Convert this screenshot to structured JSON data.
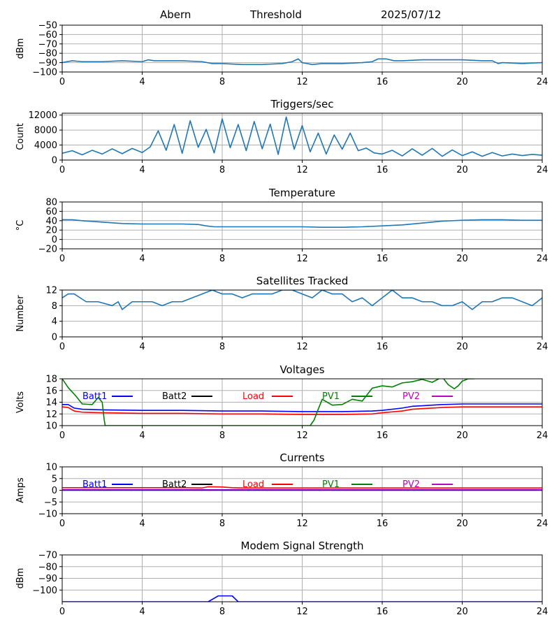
{
  "header": {
    "station": "Abern",
    "mode": "Threshold",
    "date": "2025/07/12"
  },
  "colors": {
    "default_line": "#1f77b4",
    "grid": "#b0b0b0",
    "batt1": "#0000ff",
    "batt2": "#000000",
    "load": "#ff0000",
    "pv1": "#008000",
    "pv2": "#bf00bf"
  },
  "chart_data": [
    {
      "id": "threshold",
      "type": "line",
      "title": "",
      "xlabel": "",
      "ylabel": "dBm",
      "xlim": [
        0,
        24
      ],
      "xticks": [
        0,
        4,
        8,
        12,
        16,
        20,
        24
      ],
      "ylim": [
        -100,
        -50
      ],
      "yticks": [
        -100,
        -90,
        -80,
        -70,
        -60,
        -50
      ],
      "grid": true,
      "series": [
        {
          "color": "#1f77b4",
          "x": [
            0,
            0.5,
            1,
            2,
            3,
            4,
            4.3,
            4.6,
            5,
            6,
            7,
            7.5,
            8,
            9,
            10,
            11,
            11.5,
            11.8,
            12,
            12.5,
            13,
            14,
            15,
            15.5,
            15.8,
            16.2,
            16.6,
            17,
            18,
            19,
            20,
            21,
            21.5,
            21.8,
            22,
            23,
            24
          ],
          "y": [
            -90,
            -88,
            -89,
            -89,
            -88,
            -89,
            -87,
            -88,
            -88,
            -88,
            -89,
            -91,
            -91,
            -92,
            -92,
            -91,
            -89,
            -86,
            -90,
            -92,
            -91,
            -91,
            -90,
            -89,
            -86,
            -86,
            -88,
            -88,
            -87,
            -87,
            -87,
            -88,
            -88,
            -91,
            -90,
            -91,
            -90
          ]
        }
      ]
    },
    {
      "id": "triggers",
      "type": "line",
      "title": "Triggers/sec",
      "xlabel": "",
      "ylabel": "Count",
      "xlim": [
        0,
        24
      ],
      "xticks": [
        0,
        4,
        8,
        12,
        16,
        20,
        24
      ],
      "ylim": [
        0,
        12500
      ],
      "yticks": [
        0,
        4000,
        8000,
        12000
      ],
      "grid": true,
      "series": [
        {
          "color": "#1f77b4",
          "x": [
            0,
            0.5,
            1,
            1.5,
            2,
            2.5,
            3,
            3.5,
            4,
            4.4,
            4.8,
            5.2,
            5.6,
            6,
            6.4,
            6.8,
            7.2,
            7.6,
            8,
            8.4,
            8.8,
            9.2,
            9.6,
            10,
            10.4,
            10.8,
            11.2,
            11.6,
            12,
            12.4,
            12.8,
            13.2,
            13.6,
            14,
            14.4,
            14.8,
            15.2,
            15.6,
            16,
            16.5,
            17,
            17.5,
            18,
            18.5,
            19,
            19.5,
            20,
            20.5,
            21,
            21.5,
            22,
            22.5,
            23,
            23.5,
            24
          ],
          "y": [
            1800,
            2500,
            1400,
            2600,
            1600,
            3000,
            1700,
            3100,
            2000,
            3500,
            7800,
            2600,
            9500,
            1800,
            10500,
            3400,
            8200,
            1900,
            11000,
            3300,
            9500,
            2500,
            10300,
            3000,
            9600,
            1500,
            11500,
            2900,
            9200,
            2200,
            7200,
            1600,
            6700,
            2900,
            7200,
            2500,
            3200,
            1900,
            1600,
            2600,
            1100,
            3000,
            1300,
            3100,
            1000,
            2700,
            1200,
            2200,
            1000,
            2000,
            1100,
            1600,
            1200,
            1500,
            1300
          ]
        }
      ]
    },
    {
      "id": "temperature",
      "type": "line",
      "title": "Temperature",
      "xlabel": "",
      "ylabel": "°C",
      "xlim": [
        0,
        24
      ],
      "xticks": [
        0,
        4,
        8,
        12,
        16,
        20,
        24
      ],
      "ylim": [
        -20,
        80
      ],
      "yticks": [
        -20,
        0,
        20,
        40,
        60,
        80
      ],
      "grid": true,
      "series": [
        {
          "color": "#1f77b4",
          "x": [
            0,
            0.5,
            1,
            2,
            3,
            4,
            5,
            6,
            6.8,
            7.2,
            7.6,
            8,
            9,
            10,
            11,
            12,
            13,
            14,
            15,
            16,
            17,
            18,
            19,
            20,
            21,
            22,
            23,
            24
          ],
          "y": [
            42,
            42,
            40,
            37,
            34,
            33,
            33,
            33,
            32,
            29,
            27,
            27,
            27,
            27,
            27,
            27,
            26,
            26,
            27,
            29,
            31,
            35,
            39,
            41,
            42,
            42,
            41,
            41
          ]
        }
      ]
    },
    {
      "id": "satellites",
      "type": "line",
      "title": "Satellites Tracked",
      "xlabel": "",
      "ylabel": "Number",
      "xlim": [
        0,
        24
      ],
      "xticks": [
        0,
        4,
        8,
        12,
        16,
        20,
        24
      ],
      "ylim": [
        0,
        12
      ],
      "yticks": [
        0,
        4,
        8,
        12
      ],
      "grid": true,
      "series": [
        {
          "color": "#1f77b4",
          "x": [
            0,
            0.3,
            0.6,
            1.2,
            1.8,
            2.5,
            2.8,
            3.0,
            3.5,
            4.0,
            4.5,
            5.0,
            5.5,
            6.0,
            6.5,
            7.0,
            7.5,
            8.0,
            8.5,
            9.0,
            9.5,
            10.0,
            10.5,
            11.0,
            11.5,
            12.0,
            12.5,
            13.0,
            13.5,
            14.0,
            14.5,
            15.0,
            15.5,
            16.0,
            16.5,
            17.0,
            17.5,
            18.0,
            18.5,
            19.0,
            19.5,
            20.0,
            20.5,
            21.0,
            21.5,
            22.0,
            22.5,
            23.0,
            23.5,
            24
          ],
          "y": [
            10,
            11,
            11,
            9,
            9,
            8,
            9,
            7,
            9,
            9,
            9,
            8,
            9,
            9,
            10,
            11,
            12,
            11,
            11,
            10,
            11,
            11,
            11,
            12,
            12,
            11,
            10,
            12,
            11,
            11,
            9,
            10,
            8,
            10,
            12,
            10,
            10,
            9,
            9,
            8,
            8,
            9,
            7,
            9,
            9,
            10,
            10,
            9,
            8,
            10
          ]
        }
      ]
    },
    {
      "id": "voltages",
      "type": "line",
      "title": "Voltages",
      "xlabel": "",
      "ylabel": "Volts",
      "xlim": [
        0,
        24
      ],
      "xticks": [
        0,
        4,
        8,
        12,
        16,
        20,
        24
      ],
      "ylim": [
        10,
        18
      ],
      "yticks": [
        10,
        12,
        14,
        16,
        18
      ],
      "grid": true,
      "series": [
        {
          "name": "Batt1",
          "color": "#0000ff",
          "x": [
            0,
            0.3,
            0.6,
            1,
            2,
            4,
            6,
            8,
            10,
            12,
            14,
            15.5,
            16,
            17,
            17.5,
            18,
            19,
            20,
            22,
            24
          ],
          "y": [
            13.6,
            13.6,
            13.0,
            12.8,
            12.7,
            12.6,
            12.6,
            12.5,
            12.5,
            12.4,
            12.4,
            12.5,
            12.6,
            13.0,
            13.3,
            13.4,
            13.6,
            13.7,
            13.7,
            13.7
          ]
        },
        {
          "name": "Load",
          "color": "#ff0000",
          "x": [
            0,
            0.3,
            0.6,
            1,
            2,
            4,
            6,
            8,
            10,
            12,
            14,
            15.5,
            16,
            17,
            17.5,
            18,
            19,
            20,
            22,
            24
          ],
          "y": [
            13.2,
            13.1,
            12.5,
            12.3,
            12.2,
            12.1,
            12.1,
            12.0,
            12.0,
            11.9,
            11.9,
            12.0,
            12.2,
            12.5,
            12.8,
            12.9,
            13.1,
            13.2,
            13.2,
            13.2
          ]
        },
        {
          "name": "PV1",
          "color": "#008000",
          "x": [
            0,
            0.3,
            0.7,
            1.0,
            1.5,
            1.8,
            2.0,
            2.1,
            2.15,
            12.4,
            12.6,
            12.8,
            13.0,
            13.5,
            14.0,
            14.5,
            15.0,
            15.5,
            16.0,
            16.5,
            17.0,
            17.5,
            18.0,
            18.5,
            19.0,
            19.3,
            19.6,
            19.8,
            20.0,
            20.3,
            20.6
          ],
          "y": [
            18,
            16.5,
            15.0,
            13.7,
            13.6,
            14.8,
            14.0,
            11.0,
            10.0,
            10.0,
            11.0,
            12.8,
            14.5,
            13.5,
            13.6,
            14.5,
            14.2,
            16.4,
            16.8,
            16.6,
            17.3,
            17.5,
            17.9,
            17.4,
            18.3,
            17.0,
            16.3,
            16.8,
            17.6,
            18.0,
            18.0
          ]
        }
      ],
      "legend": [
        "Batt1",
        "Batt2",
        "Load",
        "PV1",
        "PV2"
      ]
    },
    {
      "id": "currents",
      "type": "line",
      "title": "Currents",
      "xlabel": "",
      "ylabel": "Amps",
      "xlim": [
        0,
        24
      ],
      "xticks": [
        0,
        4,
        8,
        12,
        16,
        20,
        24
      ],
      "ylim": [
        -10,
        10
      ],
      "yticks": [
        -10,
        -5,
        0,
        5,
        10
      ],
      "grid": true,
      "series": [
        {
          "name": "Load",
          "color": "#ff0000",
          "x": [
            0,
            2,
            4,
            6,
            7,
            7.3,
            8,
            8.5,
            9,
            12,
            16,
            20,
            24
          ],
          "y": [
            1.1,
            1.1,
            1.1,
            1.1,
            1.0,
            1.5,
            1.4,
            1.1,
            1.0,
            1.0,
            1.0,
            1.0,
            1.0
          ]
        },
        {
          "name": "PV2",
          "color": "#bf00bf",
          "x": [
            0,
            24
          ],
          "y": [
            0.2,
            0.2
          ]
        },
        {
          "name": "Batt1",
          "color": "#0000ff",
          "x": [
            0,
            24
          ],
          "y": [
            0.0,
            0.0
          ]
        }
      ],
      "legend": [
        "Batt1",
        "Batt2",
        "Load",
        "PV1",
        "PV2"
      ]
    },
    {
      "id": "modem",
      "type": "line",
      "title": "Modem Signal Strength",
      "xlabel": "",
      "ylabel": "dBm",
      "xlim": [
        0,
        24
      ],
      "xticks": [
        0,
        4,
        8,
        12,
        16,
        20,
        24
      ],
      "ylim": [
        -110,
        -70
      ],
      "yticks": [
        -100,
        -90,
        -80,
        -70
      ],
      "grid": true,
      "series": [
        {
          "color": "#0000ff",
          "x": [
            0,
            7.3,
            7.8,
            8.5,
            8.8,
            24
          ],
          "y": [
            -110,
            -110,
            -105,
            -105,
            -110,
            -110
          ]
        }
      ]
    }
  ]
}
